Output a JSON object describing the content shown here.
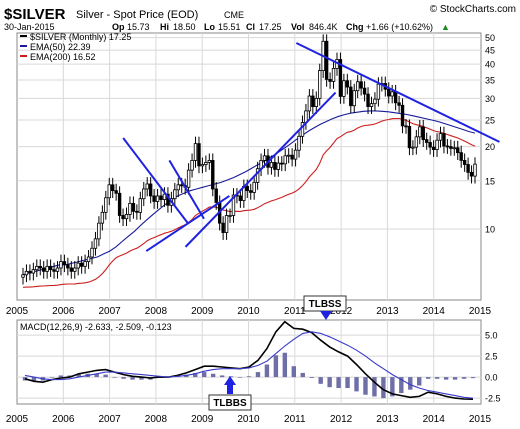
{
  "header": {
    "symbol": "$SILVER",
    "name": "Silver - Spot Price (EOD)",
    "exchange": "CME",
    "copyright": "© StockCharts.com",
    "date": "30-Jan-2015",
    "op_label": "Op",
    "op": "15.73",
    "hi_label": "Hi",
    "hi": "18.50",
    "lo_label": "Lo",
    "lo": "15.51",
    "cl_label": "Cl",
    "cl": "17.25",
    "vol_label": "Vol",
    "vol": "846.4K",
    "chg_label": "Chg",
    "chg": "+1.66 (+10.62%)",
    "up_arrow": "▲"
  },
  "legend": [
    {
      "label": "$SILVER (Monthly) 17.25",
      "color": "#000000"
    },
    {
      "label": "EMA(50) 22.39",
      "color": "#1a1a9a"
    },
    {
      "label": "EMA(200) 16.52",
      "color": "#cc2020"
    }
  ],
  "macd_panel": {
    "label": "MACD(12,26,9) -2.633, -2.509, -0.123",
    "ticks": [
      "5.0",
      "2.5",
      "0.0",
      "-2.5"
    ]
  },
  "annotations": {
    "tlbss": "TLBSS",
    "tlbbs": "TLBBS"
  },
  "colors": {
    "candle": "#000000",
    "ema50": "#1a1a9a",
    "ema200": "#cc2020",
    "trendline": "#1f22e0",
    "histogram": "#6f6fa8",
    "grid": "#d8d8d8",
    "signal": "#3a3ac8"
  },
  "chart_data": [
    {
      "type": "candlestick",
      "title": "$SILVER Silver - Spot Price (EOD) CME",
      "scale": "log",
      "ylim": [
        5.5,
        52
      ],
      "y_ticks": [
        10,
        15,
        20,
        25,
        30,
        35,
        40,
        45,
        50
      ],
      "x_ticks": [
        "2005",
        "2006",
        "2007",
        "2008",
        "2009",
        "2010",
        "2011",
        "2012",
        "2013",
        "2014",
        "2015"
      ],
      "grid": true,
      "closes": [
        6.8,
        7.0,
        6.9,
        7.1,
        7.3,
        7.2,
        7.0,
        7.3,
        7.1,
        7.0,
        7.2,
        7.6,
        7.4,
        7.2,
        7.0,
        7.2,
        7.5,
        7.3,
        7.6,
        7.9,
        8.5,
        9.2,
        10.5,
        11.5,
        13.0,
        14.5,
        13.8,
        13.5,
        11.2,
        10.9,
        11.3,
        12.4,
        11.6,
        11.5,
        12.9,
        14.0,
        14.6,
        13.2,
        12.6,
        13.2,
        12.8,
        13.4,
        12.2,
        12.9,
        13.9,
        14.5,
        14.4,
        14.2,
        16.4,
        17.8,
        20.5,
        17.0,
        17.2,
        17.5,
        17.8,
        14.0,
        12.5,
        10.5,
        9.7,
        11.2,
        11.2,
        13.3,
        13.2,
        12.7,
        14.3,
        13.8,
        13.6,
        14.8,
        16.6,
        17.8,
        18.5,
        16.8,
        17.5,
        16.5,
        17.4,
        17.3,
        18.5,
        18.6,
        18.0,
        19.4,
        21.8,
        24.5,
        27.0,
        30.6,
        28.0,
        30.0,
        37.9,
        48.5,
        35.2,
        34.6,
        38.6,
        41.6,
        30.5,
        34.8,
        33.0,
        28.2,
        32.0,
        34.5,
        32.7,
        31.1,
        28.0,
        28.7,
        29.8,
        33.8,
        34.0,
        32.4,
        30.6,
        31.7,
        28.9,
        28.3,
        23.8,
        23.7,
        19.8,
        19.9,
        21.7,
        23.6,
        21.2,
        20.7,
        19.9,
        19.5,
        21.1,
        22.3,
        20.1,
        20.0,
        19.7,
        19.8,
        19.0,
        17.8,
        17.2,
        16.1,
        15.6,
        17.25
      ],
      "ema50": [
        6.8,
        6.9,
        7.0,
        7.1,
        7.2,
        7.3,
        7.4,
        7.4,
        7.5,
        7.6,
        7.7,
        7.8,
        7.9,
        8.1,
        8.3,
        8.6,
        9.0,
        9.4,
        9.8,
        10.3,
        10.8,
        11.3,
        11.8,
        12.3,
        12.8,
        13.2,
        13.5,
        13.8,
        14.0,
        14.2,
        14.4,
        14.6,
        14.8,
        15.1,
        15.4,
        15.8,
        16.2,
        16.7,
        17.2,
        17.7,
        18.3,
        18.9,
        19.6,
        20.3,
        21.1,
        21.9,
        22.7,
        23.4,
        24.1,
        24.7,
        25.3,
        25.8,
        26.2,
        26.5,
        26.7,
        26.9,
        27.0,
        27.0,
        26.9,
        26.8,
        26.6,
        26.4,
        26.2,
        25.9,
        25.6,
        25.3,
        25.0,
        24.7,
        24.3,
        23.9,
        23.5,
        23.1,
        22.7,
        22.39
      ]
    },
    {
      "type": "line",
      "title": "MACD(12,26,9)",
      "ylim": [
        -3.2,
        6.8
      ],
      "y_ticks": [
        5.0,
        2.5,
        0.0,
        -2.5
      ],
      "series": [
        {
          "name": "MACD",
          "values": [
            -0.2,
            -0.5,
            -0.6,
            -0.3,
            -0.1,
            0.0,
            0.4,
            0.6,
            0.8,
            0.9,
            0.6,
            0.3,
            0.1,
            0.0,
            -0.1,
            0.0,
            0.0,
            0.2,
            0.5,
            0.9,
            1.3,
            1.3,
            1.2,
            1.1,
            1.0,
            1.2,
            2.0,
            3.4,
            5.4,
            6.6,
            5.8,
            5.7,
            5.3,
            4.4,
            3.6,
            3.0,
            2.5,
            1.5,
            0.4,
            -0.6,
            -1.5,
            -2.0,
            -2.2,
            -2.4,
            -2.3,
            -1.8,
            -2.0,
            -2.3,
            -2.5,
            -2.6,
            -2.633
          ]
        },
        {
          "name": "Signal",
          "values": [
            0.2,
            0.0,
            -0.2,
            -0.3,
            -0.3,
            -0.2,
            0.0,
            0.2,
            0.4,
            0.6,
            0.6,
            0.5,
            0.4,
            0.3,
            0.2,
            0.1,
            0.0,
            0.1,
            0.2,
            0.4,
            0.7,
            0.9,
            1.0,
            1.0,
            1.0,
            1.1,
            1.4,
            1.9,
            2.8,
            3.7,
            4.5,
            5.2,
            5.4,
            5.2,
            4.8,
            4.3,
            3.8,
            3.2,
            2.5,
            1.7,
            1.0,
            0.3,
            -0.3,
            -0.9,
            -1.3,
            -1.6,
            -1.8,
            -2.0,
            -2.2,
            -2.4,
            -2.509
          ]
        }
      ],
      "histogram": [
        -0.4,
        -0.5,
        -0.4,
        0.0,
        0.2,
        0.2,
        0.4,
        0.4,
        0.4,
        0.3,
        0.0,
        -0.2,
        -0.3,
        -0.3,
        -0.3,
        -0.1,
        0.0,
        0.1,
        0.3,
        0.5,
        0.6,
        0.4,
        0.2,
        0.1,
        0.0,
        0.1,
        0.6,
        1.5,
        2.6,
        2.9,
        1.3,
        0.5,
        -0.1,
        -0.8,
        -1.2,
        -1.3,
        -1.3,
        -1.7,
        -2.1,
        -2.3,
        -2.5,
        -2.3,
        -1.9,
        -1.5,
        -1.0,
        -0.2,
        -0.2,
        -0.3,
        -0.3,
        -0.2,
        -0.123
      ]
    }
  ]
}
